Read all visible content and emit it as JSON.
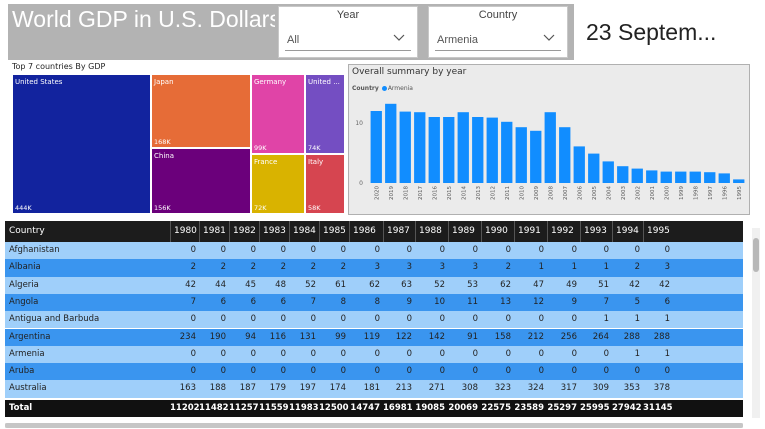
{
  "header": {
    "title": "World GDP in U.S. Dollars",
    "date": "23 Septem..."
  },
  "slicers": [
    {
      "label": "Year",
      "value": "All"
    },
    {
      "label": "Country",
      "value": "Armenia"
    }
  ],
  "treemap": {
    "title": "Top 7 countries By GDP",
    "tiles": [
      {
        "name": "United States",
        "value": "444K",
        "color": "#12239e"
      },
      {
        "name": "Japan",
        "value": "168K",
        "color": "#e66c37"
      },
      {
        "name": "China",
        "value": "156K",
        "color": "#6b007b"
      },
      {
        "name": "Germany",
        "value": "99K",
        "color": "#e044a7"
      },
      {
        "name": "France",
        "value": "72K",
        "color": "#d9b300"
      },
      {
        "name": "United ...",
        "value": "74K",
        "color": "#744ec2"
      },
      {
        "name": "Italy",
        "value": "58K",
        "color": "#d64550"
      }
    ]
  },
  "chart_data": {
    "type": "bar",
    "title": "Overall summary by year",
    "legend": {
      "title": "Country",
      "series": "Armenia",
      "position": "top-left"
    },
    "color": "#118dff",
    "categories": [
      "2020",
      "2019",
      "2018",
      "2017",
      "2016",
      "2015",
      "2014",
      "2013",
      "2012",
      "2011",
      "2010",
      "2009",
      "2008",
      "2007",
      "2006",
      "2005",
      "2004",
      "2003",
      "2002",
      "2001",
      "2000",
      "1999",
      "1998",
      "1997",
      "1996",
      "1995"
    ],
    "values": [
      12,
      13.2,
      11.9,
      11.8,
      11,
      11,
      11.8,
      11,
      10.9,
      10.2,
      9.3,
      8.7,
      11.8,
      9.3,
      6.1,
      4.9,
      3.6,
      2.8,
      2.4,
      2.1,
      1.9,
      1.9,
      1.9,
      1.8,
      1.6,
      0.6
    ],
    "yticks": [
      0,
      10
    ],
    "ylim": [
      0,
      14
    ]
  },
  "table": {
    "columns": [
      "Country",
      "1980",
      "1981",
      "1982",
      "1983",
      "1984",
      "1985",
      "1986",
      "1987",
      "1988",
      "1989",
      "1990",
      "1991",
      "1992",
      "1993",
      "1994",
      "1995"
    ],
    "rows": [
      [
        "Afghanistan",
        "0",
        "0",
        "0",
        "0",
        "0",
        "0",
        "0",
        "0",
        "0",
        "0",
        "0",
        "0",
        "0",
        "0",
        "0",
        "0"
      ],
      [
        "Albania",
        "2",
        "2",
        "2",
        "2",
        "2",
        "2",
        "3",
        "3",
        "3",
        "3",
        "2",
        "1",
        "1",
        "1",
        "2",
        "3"
      ],
      [
        "Algeria",
        "42",
        "44",
        "45",
        "48",
        "52",
        "61",
        "62",
        "63",
        "52",
        "53",
        "62",
        "47",
        "49",
        "51",
        "42",
        "42"
      ],
      [
        "Angola",
        "7",
        "6",
        "6",
        "6",
        "7",
        "8",
        "8",
        "9",
        "10",
        "11",
        "13",
        "12",
        "9",
        "7",
        "5",
        "6"
      ],
      [
        "Antigua and Barbuda",
        "0",
        "0",
        "0",
        "0",
        "0",
        "0",
        "0",
        "0",
        "0",
        "0",
        "0",
        "0",
        "0",
        "1",
        "1",
        "1"
      ],
      [
        "Argentina",
        "234",
        "190",
        "94",
        "116",
        "131",
        "99",
        "119",
        "122",
        "142",
        "91",
        "158",
        "212",
        "256",
        "264",
        "288",
        "288"
      ],
      [
        "Armenia",
        "0",
        "0",
        "0",
        "0",
        "0",
        "0",
        "0",
        "0",
        "0",
        "0",
        "0",
        "0",
        "0",
        "0",
        "1",
        "1"
      ],
      [
        "Aruba",
        "0",
        "0",
        "0",
        "0",
        "0",
        "0",
        "0",
        "0",
        "0",
        "0",
        "0",
        "0",
        "0",
        "0",
        "0",
        "0"
      ],
      [
        "Australia",
        "163",
        "188",
        "187",
        "179",
        "197",
        "174",
        "181",
        "213",
        "271",
        "308",
        "323",
        "324",
        "317",
        "309",
        "353",
        "378"
      ]
    ],
    "total": [
      "Total",
      "11202",
      "11482",
      "11257",
      "11559",
      "11983",
      "12500",
      "14747",
      "16981",
      "19085",
      "20069",
      "22575",
      "23589",
      "25297",
      "25995",
      "27942",
      "31145"
    ]
  }
}
